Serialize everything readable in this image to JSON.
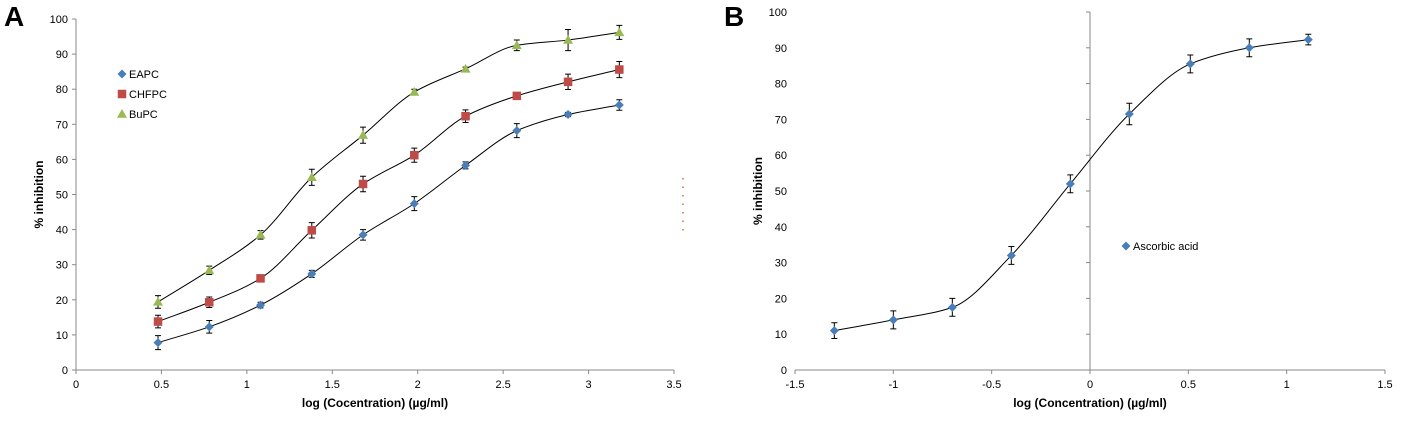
{
  "chart_data": [
    {
      "panel": "A",
      "type": "scatter",
      "title": "",
      "xlabel": "log (Cocentration) (µg/ml)",
      "ylabel": "% inhibition",
      "xlim": [
        0,
        3.5
      ],
      "ylim": [
        0,
        100
      ],
      "xticks": [
        0,
        0.5,
        1,
        1.5,
        2,
        2.5,
        3,
        3.5
      ],
      "xtick_labels": [
        "0",
        "0.5",
        "1",
        "1.5",
        "2",
        "2.5",
        "3",
        "3.5"
      ],
      "yticks": [
        0,
        10,
        20,
        30,
        40,
        50,
        60,
        70,
        80,
        90,
        100
      ],
      "ytick_labels": [
        "0",
        "10",
        "20",
        "30",
        "40",
        "50",
        "60",
        "70",
        "80",
        "90",
        "100"
      ],
      "legend_position": "top-left",
      "grid": false,
      "x": [
        0.48,
        0.78,
        1.08,
        1.38,
        1.68,
        1.98,
        2.28,
        2.58,
        2.88,
        3.18
      ],
      "series": [
        {
          "name": "EAPC",
          "marker": "diamond",
          "color": "#4a7ebb",
          "values": [
            7.8,
            12.3,
            18.5,
            27.4,
            38.5,
            47.4,
            58.3,
            68.2,
            72.8,
            75.5
          ],
          "errors": [
            2.0,
            1.8,
            0.8,
            1.0,
            1.5,
            2.0,
            1.0,
            2.0,
            0.6,
            1.5
          ]
        },
        {
          "name": "CHFPC",
          "marker": "square",
          "color": "#be4b48",
          "values": [
            13.8,
            19.3,
            26.1,
            39.8,
            53.0,
            61.2,
            72.3,
            78.1,
            82.1,
            85.6
          ],
          "errors": [
            1.8,
            1.5,
            1.0,
            2.2,
            2.2,
            2.0,
            1.8,
            0.8,
            2.2,
            2.3
          ]
        },
        {
          "name": "BuPC",
          "marker": "triangle",
          "color": "#98b954",
          "values": [
            19.4,
            28.4,
            38.5,
            54.9,
            66.9,
            79.2,
            85.8,
            92.5,
            94.0,
            96.2
          ],
          "errors": [
            1.8,
            1.2,
            1.2,
            2.3,
            2.3,
            0.8,
            0.5,
            1.5,
            3.0,
            2.0
          ]
        }
      ]
    },
    {
      "panel": "B",
      "type": "scatter",
      "title": "",
      "xlabel": "log (Concentration) (µg/ml)",
      "ylabel": "% inhibition",
      "xlim": [
        -1.5,
        1.5
      ],
      "ylim": [
        0,
        100
      ],
      "xticks": [
        -1.5,
        -1,
        -0.5,
        0,
        0.5,
        1,
        1.5
      ],
      "xtick_labels": [
        "-1.5",
        "-1",
        "-0.5",
        "0",
        "0.5",
        "1",
        "1.5"
      ],
      "yticks": [
        0,
        10,
        20,
        30,
        40,
        50,
        60,
        70,
        80,
        90,
        100
      ],
      "ytick_labels": [
        "0",
        "10",
        "20",
        "30",
        "40",
        "50",
        "60",
        "70",
        "80",
        "90",
        "100"
      ],
      "legend_position": "center-right",
      "grid": false,
      "x": [
        -1.3,
        -1.0,
        -0.7,
        -0.4,
        -0.1,
        0.2,
        0.51,
        0.81,
        1.11
      ],
      "series": [
        {
          "name": "Ascorbic acid",
          "marker": "diamond",
          "color": "#4a7ebb",
          "values": [
            11.0,
            14.0,
            17.5,
            32.0,
            52.0,
            71.5,
            85.5,
            90.0,
            92.3
          ],
          "errors": [
            2.2,
            2.5,
            2.5,
            2.5,
            2.5,
            3.0,
            2.5,
            2.5,
            1.5
          ]
        }
      ]
    }
  ]
}
